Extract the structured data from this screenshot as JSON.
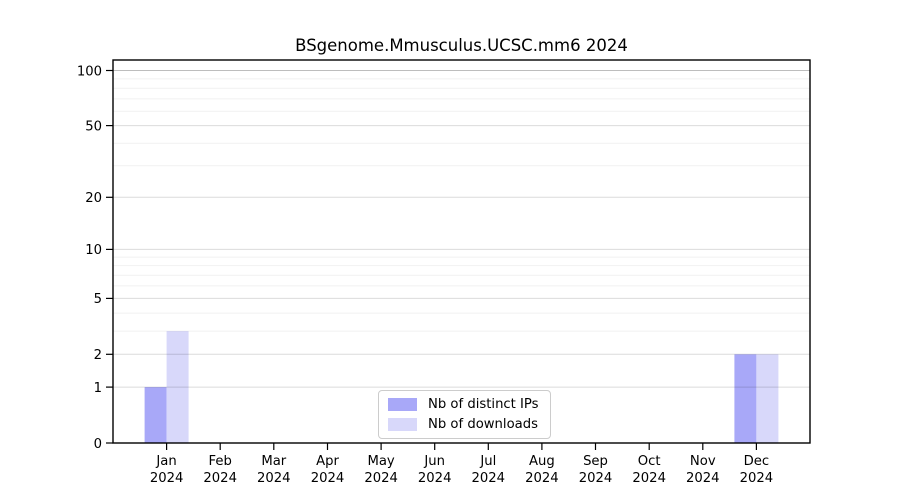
{
  "figure": {
    "background": "#ffffff"
  },
  "chart_data": {
    "type": "bar",
    "title": "BSgenome.Mmusculus.UCSC.mm6 2024",
    "categories": [
      "Jan",
      "Feb",
      "Mar",
      "Apr",
      "May",
      "Jun",
      "Jul",
      "Aug",
      "Sep",
      "Oct",
      "Nov",
      "Dec"
    ],
    "x_sub_label": "2024",
    "series": [
      {
        "name": "Nb of distinct IPs",
        "color": "#a8a8f8",
        "values": [
          1,
          0,
          0,
          0,
          0,
          0,
          0,
          0,
          0,
          0,
          0,
          2
        ]
      },
      {
        "name": "Nb of downloads",
        "color": "#d8d8fa",
        "values": [
          3,
          0,
          0,
          0,
          0,
          0,
          0,
          0,
          0,
          0,
          0,
          2
        ]
      }
    ],
    "yscale": "log10(1+x)",
    "ylabel": "",
    "xlabel": "",
    "y_ticks": [
      0,
      1,
      2,
      5,
      10,
      20,
      50,
      100
    ],
    "y_minor_gridlines": [
      3,
      4,
      6,
      7,
      8,
      9,
      30,
      40,
      60,
      70,
      80,
      90
    ],
    "ylim": [
      0,
      113
    ],
    "grid": true,
    "legend_position": "bottom-center",
    "legend_border_color": "#cccccc"
  }
}
